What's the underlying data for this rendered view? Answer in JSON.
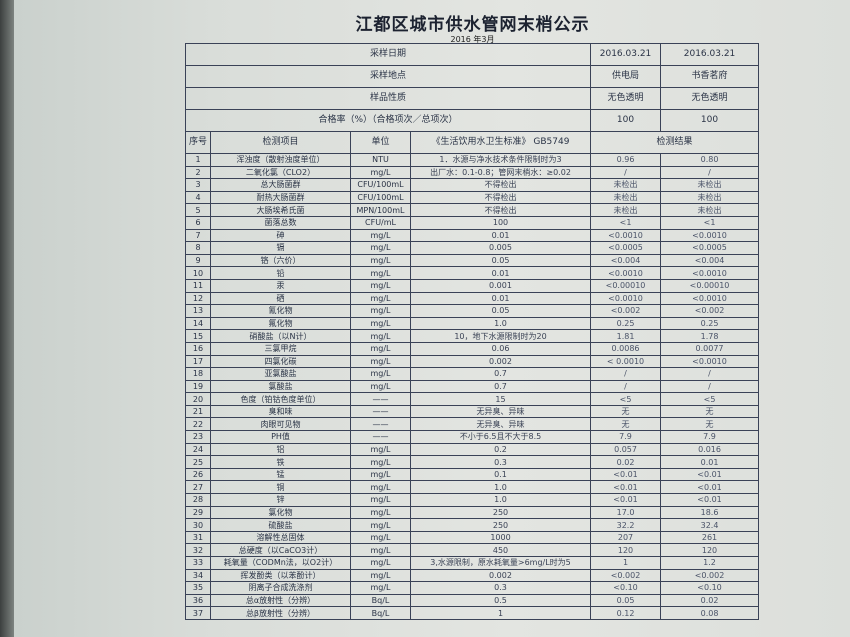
{
  "title": "江都区城市供水管网末梢公示",
  "subtitle": "2016 年3月",
  "header_rows": [
    {
      "label": "采样日期",
      "v1": "2016.03.21",
      "v2": "2016.03.21"
    },
    {
      "label": "采样地点",
      "v1": "供电局",
      "v2": "书香茗府"
    },
    {
      "label": "样品性质",
      "v1": "无色透明",
      "v2": "无色透明"
    },
    {
      "label": "合格率（%）（合格项次／总项次）",
      "v1": "100",
      "v2": "100"
    }
  ],
  "columns": {
    "seq": "序号",
    "item": "检测项目",
    "unit": "单位",
    "standard": "《生活饮用水卫生标准》 GB5749",
    "result": "检测结果"
  },
  "rows": [
    [
      "1",
      "浑浊度（散射浊度单位）",
      "NTU",
      "1．水源与净水技术条件限制时为3",
      "0.96",
      "0.80"
    ],
    [
      "2",
      "二氧化氯（CLO2）",
      "mg/L",
      "出厂水：0.1-0.8；管网末梢水：≥0.02",
      "/",
      "/"
    ],
    [
      "3",
      "总大肠菌群",
      "CFU/100mL",
      "不得检出",
      "未检出",
      "未检出"
    ],
    [
      "4",
      "耐热大肠菌群",
      "CFU/100mL",
      "不得检出",
      "未检出",
      "未检出"
    ],
    [
      "5",
      "大肠埃希氏菌",
      "MPN/100mL",
      "不得检出",
      "未检出",
      "未检出"
    ],
    [
      "6",
      "菌落总数",
      "CFU/mL",
      "100",
      "<1",
      "<1"
    ],
    [
      "7",
      "砷",
      "mg/L",
      "0.01",
      "<0.0010",
      "<0.0010"
    ],
    [
      "8",
      "镉",
      "mg/L",
      "0.005",
      "<0.0005",
      "<0.0005"
    ],
    [
      "9",
      "铬（六价）",
      "mg/L",
      "0.05",
      "<0.004",
      "<0.004"
    ],
    [
      "10",
      "铅",
      "mg/L",
      "0.01",
      "<0.0010",
      "<0.0010"
    ],
    [
      "11",
      "汞",
      "mg/L",
      "0.001",
      "<0.00010",
      "<0.00010"
    ],
    [
      "12",
      "硒",
      "mg/L",
      "0.01",
      "<0.0010",
      "<0.0010"
    ],
    [
      "13",
      "氰化物",
      "mg/L",
      "0.05",
      "<0.002",
      "<0.002"
    ],
    [
      "14",
      "氟化物",
      "mg/L",
      "1.0",
      "0.25",
      "0.25"
    ],
    [
      "15",
      "硝酸盐（以N计）",
      "mg/L",
      "10，地下水源限制时为20",
      "1.81",
      "1.78"
    ],
    [
      "16",
      "三氯甲烷",
      "mg/L",
      "0.06",
      "0.0086",
      "0.0077"
    ],
    [
      "17",
      "四氯化碳",
      "mg/L",
      "0.002",
      "< 0.0010",
      "<0.0010"
    ],
    [
      "18",
      "亚氯酸盐",
      "mg/L",
      "0.7",
      "/",
      "/"
    ],
    [
      "19",
      "氯酸盐",
      "mg/L",
      "0.7",
      "/",
      "/"
    ],
    [
      "20",
      "色度（铂钴色度单位）",
      "——",
      "15",
      "<5",
      "<5"
    ],
    [
      "21",
      "臭和味",
      "——",
      "无异臭、异味",
      "无",
      "无"
    ],
    [
      "22",
      "肉眼可见物",
      "——",
      "无异臭、异味",
      "无",
      "无"
    ],
    [
      "23",
      "PH值",
      "——",
      "不小于6.5且不大于8.5",
      "7.9",
      "7.9"
    ],
    [
      "24",
      "铝",
      "mg/L",
      "0.2",
      "0.057",
      "0.016"
    ],
    [
      "25",
      "铁",
      "mg/L",
      "0.3",
      "0.02",
      "0.01"
    ],
    [
      "26",
      "锰",
      "mg/L",
      "0.1",
      "<0.01",
      "<0.01"
    ],
    [
      "27",
      "铜",
      "mg/L",
      "1.0",
      "<0.01",
      "<0.01"
    ],
    [
      "28",
      "锌",
      "mg/L",
      "1.0",
      "<0.01",
      "<0.01"
    ],
    [
      "29",
      "氯化物",
      "mg/L",
      "250",
      "17.0",
      "18.6"
    ],
    [
      "30",
      "硫酸盐",
      "mg/L",
      "250",
      "32.2",
      "32.4"
    ],
    [
      "31",
      "溶解性总固体",
      "mg/L",
      "1000",
      "207",
      "261"
    ],
    [
      "32",
      "总硬度（以CaCO3计）",
      "mg/L",
      "450",
      "120",
      "120"
    ],
    [
      "33",
      "耗氧量（CODMn法，以O2计）",
      "mg/L",
      "3,水源限制，原水耗氧量>6mg/L时为5",
      "1",
      "1.2"
    ],
    [
      "34",
      "挥发酚类（以苯酚计）",
      "mg/L",
      "0.002",
      "<0.002",
      "<0.002"
    ],
    [
      "35",
      "阴离子合成洗涤剂",
      "mg/L",
      "0.3",
      "<0.10",
      "<0.10"
    ],
    [
      "36",
      "总α放射性（分辨）",
      "Bq/L",
      "0.5",
      "0.05",
      "0.02"
    ],
    [
      "37",
      "总β放射性（分辨）",
      "Bq/L",
      "1",
      "0.12",
      "0.08"
    ]
  ]
}
